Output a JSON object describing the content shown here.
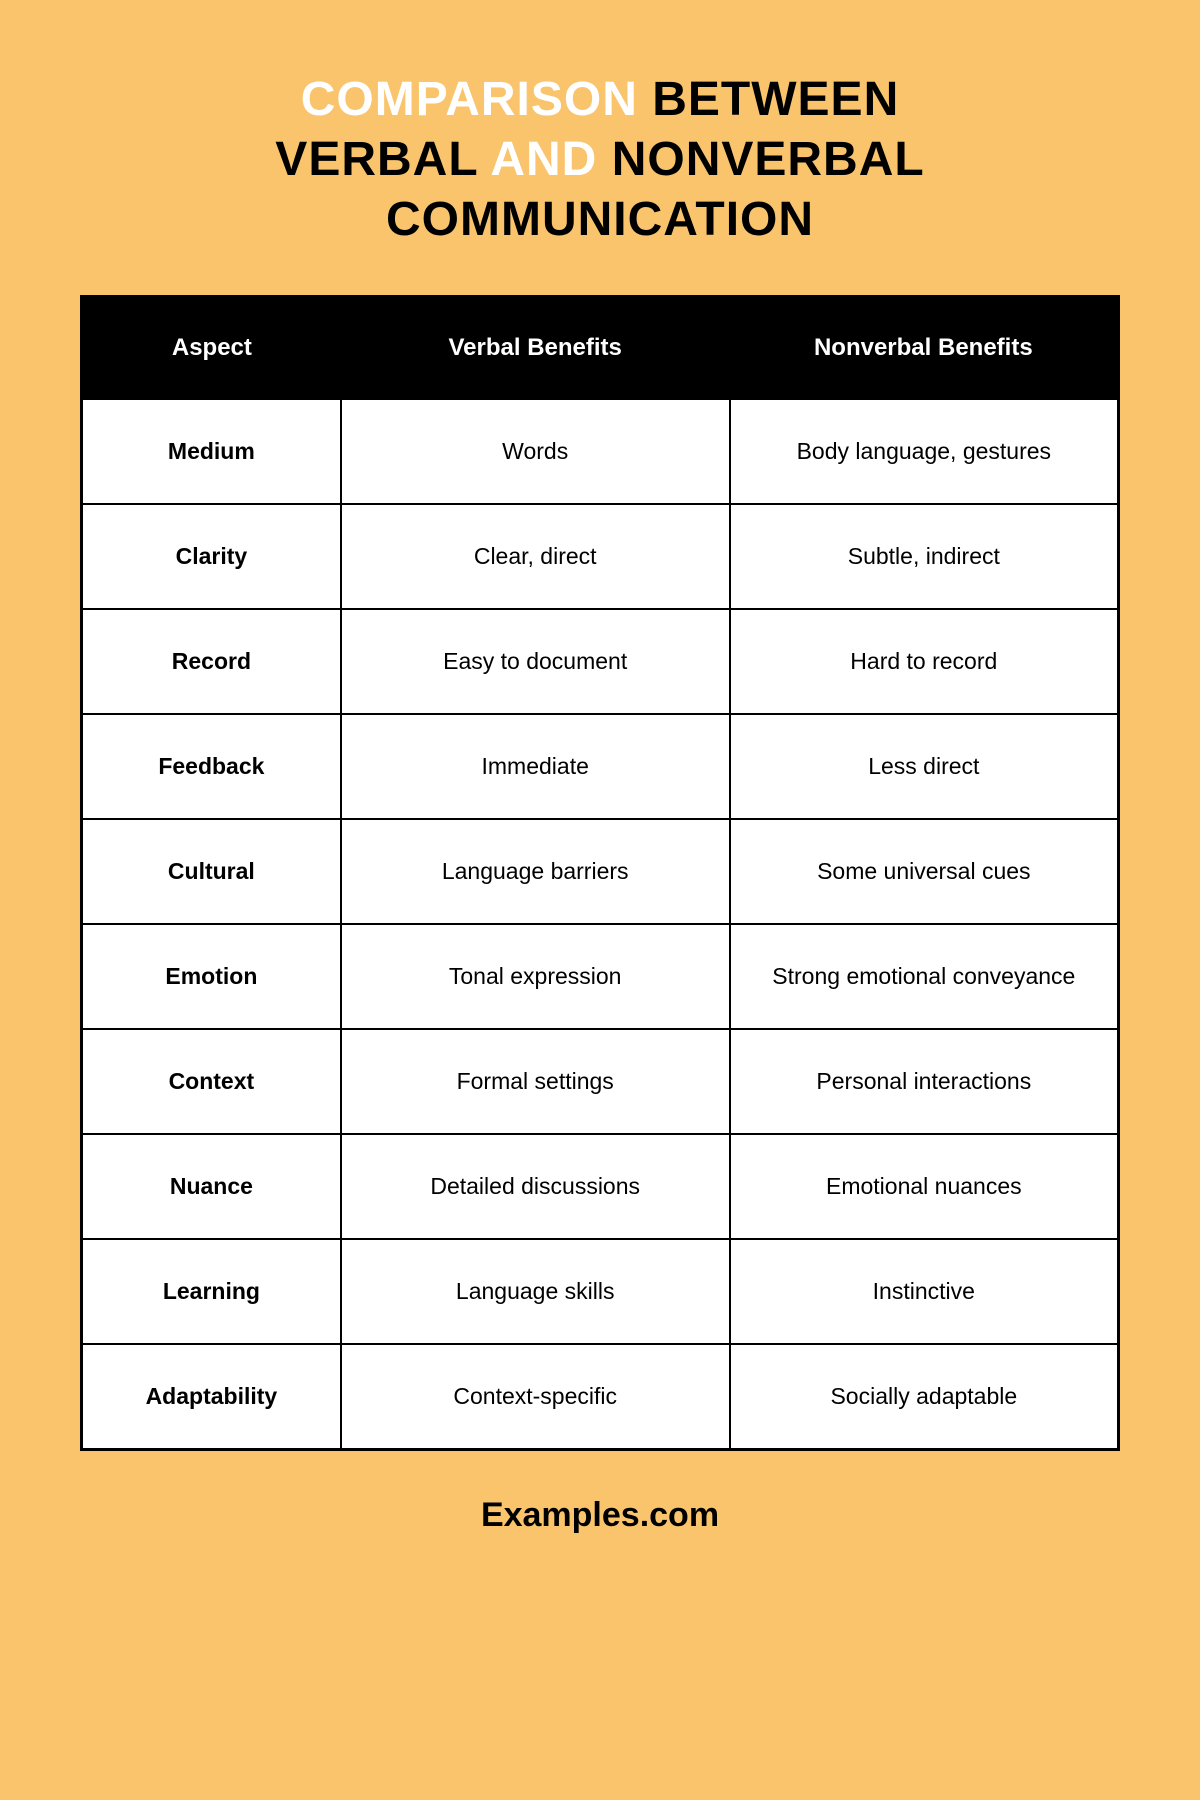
{
  "title": {
    "w1": "COMPARISON",
    "w2": "BETWEEN",
    "w3": "VERBAL",
    "w4": "AND",
    "w5": "NONVERBAL",
    "w6": "COMMUNICATION"
  },
  "colors": {
    "background": "#f9c46c",
    "header_bg": "#000000",
    "header_text": "#ffffff",
    "cell_bg": "#ffffff",
    "cell_text": "#000000",
    "border": "#000000",
    "title_accent": "#ffffff",
    "title_main": "#000000"
  },
  "typography": {
    "title_fontsize": 48,
    "title_weight": 900,
    "header_fontsize": 24,
    "header_weight": 700,
    "cell_fontsize": 23,
    "aspect_weight": 800,
    "footer_fontsize": 34,
    "footer_weight": 800
  },
  "table": {
    "type": "table",
    "columns": [
      "Aspect",
      "Verbal Benefits",
      "Nonverbal Benefits"
    ],
    "column_widths_pct": [
      25,
      37.5,
      37.5
    ],
    "rows": [
      [
        "Medium",
        "Words",
        "Body language, gestures"
      ],
      [
        "Clarity",
        "Clear, direct",
        "Subtle, indirect"
      ],
      [
        "Record",
        "Easy to document",
        "Hard to record"
      ],
      [
        "Feedback",
        "Immediate",
        "Less direct"
      ],
      [
        "Cultural",
        "Language barriers",
        "Some universal cues"
      ],
      [
        "Emotion",
        "Tonal expression",
        "Strong emotional conveyance"
      ],
      [
        "Context",
        "Formal settings",
        "Personal interactions"
      ],
      [
        "Nuance",
        "Detailed discussions",
        "Emotional nuances"
      ],
      [
        "Learning",
        "Language skills",
        "Instinctive"
      ],
      [
        "Adaptability",
        "Context-specific",
        "Socially adaptable"
      ]
    ],
    "border_width": 2,
    "outer_border_width": 3
  },
  "footer": "Examples.com"
}
